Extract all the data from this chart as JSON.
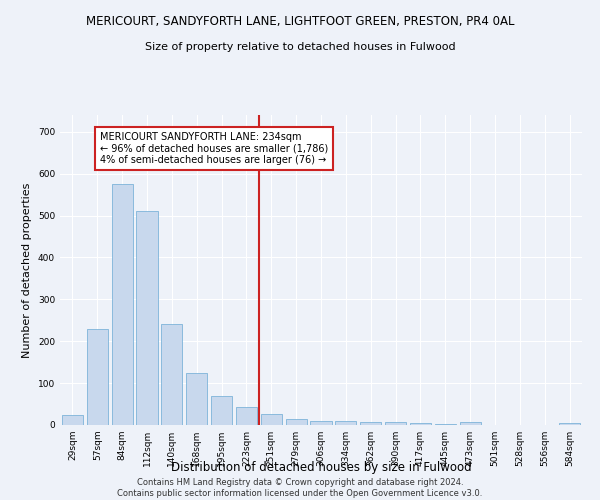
{
  "title_line1": "MERICOURT, SANDYFORTH LANE, LIGHTFOOT GREEN, PRESTON, PR4 0AL",
  "title_line2": "Size of property relative to detached houses in Fulwood",
  "xlabel": "Distribution of detached houses by size in Fulwood",
  "ylabel": "Number of detached properties",
  "footer_line1": "Contains HM Land Registry data © Crown copyright and database right 2024.",
  "footer_line2": "Contains public sector information licensed under the Open Government Licence v3.0.",
  "bar_color": "#c8d8ed",
  "bar_edge_color": "#6aaad4",
  "categories": [
    "29sqm",
    "57sqm",
    "84sqm",
    "112sqm",
    "140sqm",
    "168sqm",
    "195sqm",
    "223sqm",
    "251sqm",
    "279sqm",
    "306sqm",
    "334sqm",
    "362sqm",
    "390sqm",
    "417sqm",
    "445sqm",
    "473sqm",
    "501sqm",
    "528sqm",
    "556sqm",
    "584sqm"
  ],
  "values": [
    25,
    230,
    575,
    510,
    240,
    125,
    70,
    42,
    27,
    15,
    10,
    9,
    8,
    7,
    5,
    3,
    8,
    0,
    0,
    0,
    5
  ],
  "ylim": [
    0,
    740
  ],
  "yticks": [
    0,
    100,
    200,
    300,
    400,
    500,
    600,
    700
  ],
  "vline_x": 7.5,
  "vline_color": "#cc2222",
  "annotation_line1": "MERICOURT SANDYFORTH LANE: 234sqm",
  "annotation_line2": "← 96% of detached houses are smaller (1,786)",
  "annotation_line3": "4% of semi-detached houses are larger (76) →",
  "annotation_box_color": "#cc2222",
  "background_color": "#eef2f9",
  "grid_color": "#ffffff",
  "title_fontsize": 8.5,
  "subtitle_fontsize": 8.0,
  "ylabel_fontsize": 8.0,
  "xlabel_fontsize": 8.5,
  "tick_fontsize": 6.5,
  "annotation_fontsize": 7.0,
  "footer_fontsize": 6.0
}
